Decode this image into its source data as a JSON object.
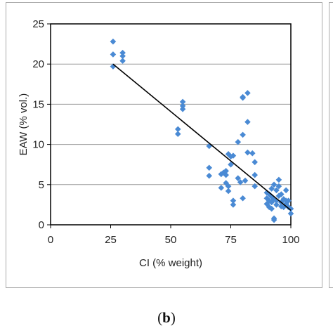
{
  "panel_label": {
    "open": "(",
    "letter": "b",
    "close": ")"
  },
  "colors": {
    "marker": "#4a8ad4",
    "trendline": "#000000",
    "grid": "#9a9a9a",
    "frame": "#000000"
  },
  "chart_data": {
    "type": "scatter",
    "xlabel": "CI (% weight)",
    "ylabel": "EAW (% vol.)",
    "xlim": [
      0,
      100
    ],
    "ylim": [
      0,
      25
    ],
    "xticks": [
      0,
      25,
      50,
      75,
      100
    ],
    "yticks": [
      0,
      5,
      10,
      15,
      20,
      25
    ],
    "grid": "horizontal",
    "marker": "diamond",
    "trendline": {
      "x": [
        26,
        100
      ],
      "y": [
        20,
        1.8
      ]
    },
    "points": [
      [
        26,
        22.8
      ],
      [
        26,
        21.2
      ],
      [
        26,
        19.7
      ],
      [
        30,
        21.4
      ],
      [
        30,
        21.0
      ],
      [
        30,
        20.4
      ],
      [
        53,
        11.9
      ],
      [
        53,
        11.3
      ],
      [
        55,
        15.3
      ],
      [
        55,
        14.8
      ],
      [
        55,
        14.4
      ],
      [
        66,
        9.8
      ],
      [
        66,
        7.1
      ],
      [
        66,
        6.1
      ],
      [
        71,
        6.3
      ],
      [
        71,
        4.6
      ],
      [
        72,
        6.5
      ],
      [
        73,
        6.7
      ],
      [
        73,
        6.2
      ],
      [
        73,
        5.2
      ],
      [
        74,
        8.8
      ],
      [
        74,
        4.8
      ],
      [
        74,
        4.2
      ],
      [
        75,
        8.5
      ],
      [
        75,
        7.5
      ],
      [
        76,
        8.6
      ],
      [
        76,
        3.0
      ],
      [
        76,
        2.5
      ],
      [
        78,
        10.3
      ],
      [
        78,
        5.8
      ],
      [
        79,
        5.3
      ],
      [
        80,
        15.8
      ],
      [
        80,
        15.9
      ],
      [
        80,
        11.2
      ],
      [
        80,
        3.3
      ],
      [
        81,
        5.5
      ],
      [
        82,
        16.4
      ],
      [
        82,
        12.8
      ],
      [
        82,
        9.0
      ],
      [
        84,
        8.9
      ],
      [
        85,
        7.8
      ],
      [
        85,
        6.2
      ],
      [
        85,
        4.8
      ],
      [
        90,
        4.0
      ],
      [
        90,
        3.3
      ],
      [
        90,
        2.6
      ],
      [
        91,
        3.8
      ],
      [
        91,
        3.0
      ],
      [
        91,
        2.2
      ],
      [
        92,
        4.5
      ],
      [
        92,
        3.5
      ],
      [
        92,
        2.8
      ],
      [
        92,
        2.0
      ],
      [
        93,
        5.0
      ],
      [
        93,
        3.2
      ],
      [
        93,
        0.8
      ],
      [
        93,
        0.6
      ],
      [
        94,
        4.3
      ],
      [
        94,
        3.0
      ],
      [
        94,
        2.5
      ],
      [
        95,
        5.6
      ],
      [
        95,
        4.8
      ],
      [
        95,
        3.6
      ],
      [
        96,
        3.8
      ],
      [
        96,
        2.8
      ],
      [
        96,
        2.3
      ],
      [
        97,
        3.2
      ],
      [
        97,
        2.2
      ],
      [
        98,
        4.3
      ],
      [
        98,
        3.0
      ],
      [
        98,
        2.6
      ],
      [
        99,
        3.0
      ],
      [
        99,
        2.2
      ],
      [
        100,
        2.0
      ],
      [
        100,
        1.4
      ]
    ]
  }
}
